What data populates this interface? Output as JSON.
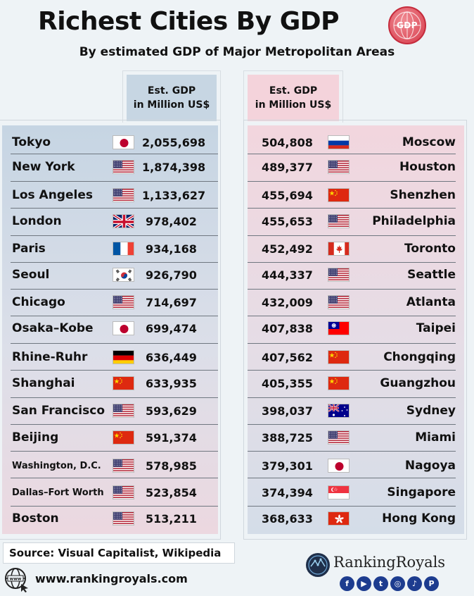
{
  "title": "Richest Cities By GDP",
  "badge": "GDP",
  "subtitle": "By estimated GDP of Major Metropolitan Areas",
  "col_header": {
    "line1": "Est. GDP",
    "line2": "in Million US$"
  },
  "left_rows": [
    {
      "city": "Tokyo",
      "flag": "japan",
      "value": "2,055,698"
    },
    {
      "city": "New York",
      "flag": "usa",
      "value": "1,874,398"
    },
    {
      "city": "Los Angeles",
      "flag": "usa",
      "value": "1,133,627"
    },
    {
      "city": "London",
      "flag": "uk",
      "value": "978,402"
    },
    {
      "city": "Paris",
      "flag": "france",
      "value": "934,168"
    },
    {
      "city": "Seoul",
      "flag": "south-korea",
      "value": "926,790"
    },
    {
      "city": "Chicago",
      "flag": "usa",
      "value": "714,697"
    },
    {
      "city": "Osaka–Kobe",
      "flag": "japan",
      "value": "699,474"
    },
    {
      "city": "Rhine-Ruhr",
      "flag": "germany",
      "value": "636,449"
    },
    {
      "city": "Shanghai",
      "flag": "china",
      "value": "633,935"
    },
    {
      "city": "San Francisco",
      "flag": "usa",
      "value": "593,629"
    },
    {
      "city": "Beijing",
      "flag": "china",
      "value": "591,374"
    },
    {
      "city": "Washington, D.C.",
      "flag": "usa",
      "value": "578,985"
    },
    {
      "city": "Dallas–Fort Worth",
      "flag": "usa",
      "value": "523,854"
    },
    {
      "city": "Boston",
      "flag": "usa",
      "value": "513,211"
    }
  ],
  "right_rows": [
    {
      "city": "Moscow",
      "flag": "russia",
      "value": "504,808"
    },
    {
      "city": "Houston",
      "flag": "usa",
      "value": "489,377"
    },
    {
      "city": "Shenzhen",
      "flag": "china",
      "value": "455,694"
    },
    {
      "city": "Philadelphia",
      "flag": "usa",
      "value": "455,653"
    },
    {
      "city": "Toronto",
      "flag": "canada",
      "value": "452,492"
    },
    {
      "city": "Seattle",
      "flag": "usa",
      "value": "444,337"
    },
    {
      "city": "Atlanta",
      "flag": "usa",
      "value": "432,009"
    },
    {
      "city": "Taipei",
      "flag": "taiwan",
      "value": "407,838"
    },
    {
      "city": "Chongqing",
      "flag": "china",
      "value": "407,562"
    },
    {
      "city": "Guangzhou",
      "flag": "china",
      "value": "405,355"
    },
    {
      "city": "Sydney",
      "flag": "australia",
      "value": "398,037"
    },
    {
      "city": "Miami",
      "flag": "usa",
      "value": "388,725"
    },
    {
      "city": "Nagoya",
      "flag": "japan",
      "value": "379,301"
    },
    {
      "city": "Singapore",
      "flag": "singapore",
      "value": "374,394"
    },
    {
      "city": "Hong Kong",
      "flag": "hong-kong",
      "value": "368,633"
    }
  ],
  "source": "Source: Visual Capitalist, Wikipedia",
  "website": "www.rankingroyals.com",
  "web_icon": "www-globe-cursor-icon",
  "brand": "RankingRoyals",
  "socials": [
    "facebook-icon",
    "youtube-icon",
    "twitter-icon",
    "instagram-icon",
    "tiktok-icon",
    "pinterest-icon"
  ],
  "colors": {
    "left_panel": "#c6d5e3",
    "right_panel": "#f2d6de",
    "accent": "#1d3c8f"
  }
}
